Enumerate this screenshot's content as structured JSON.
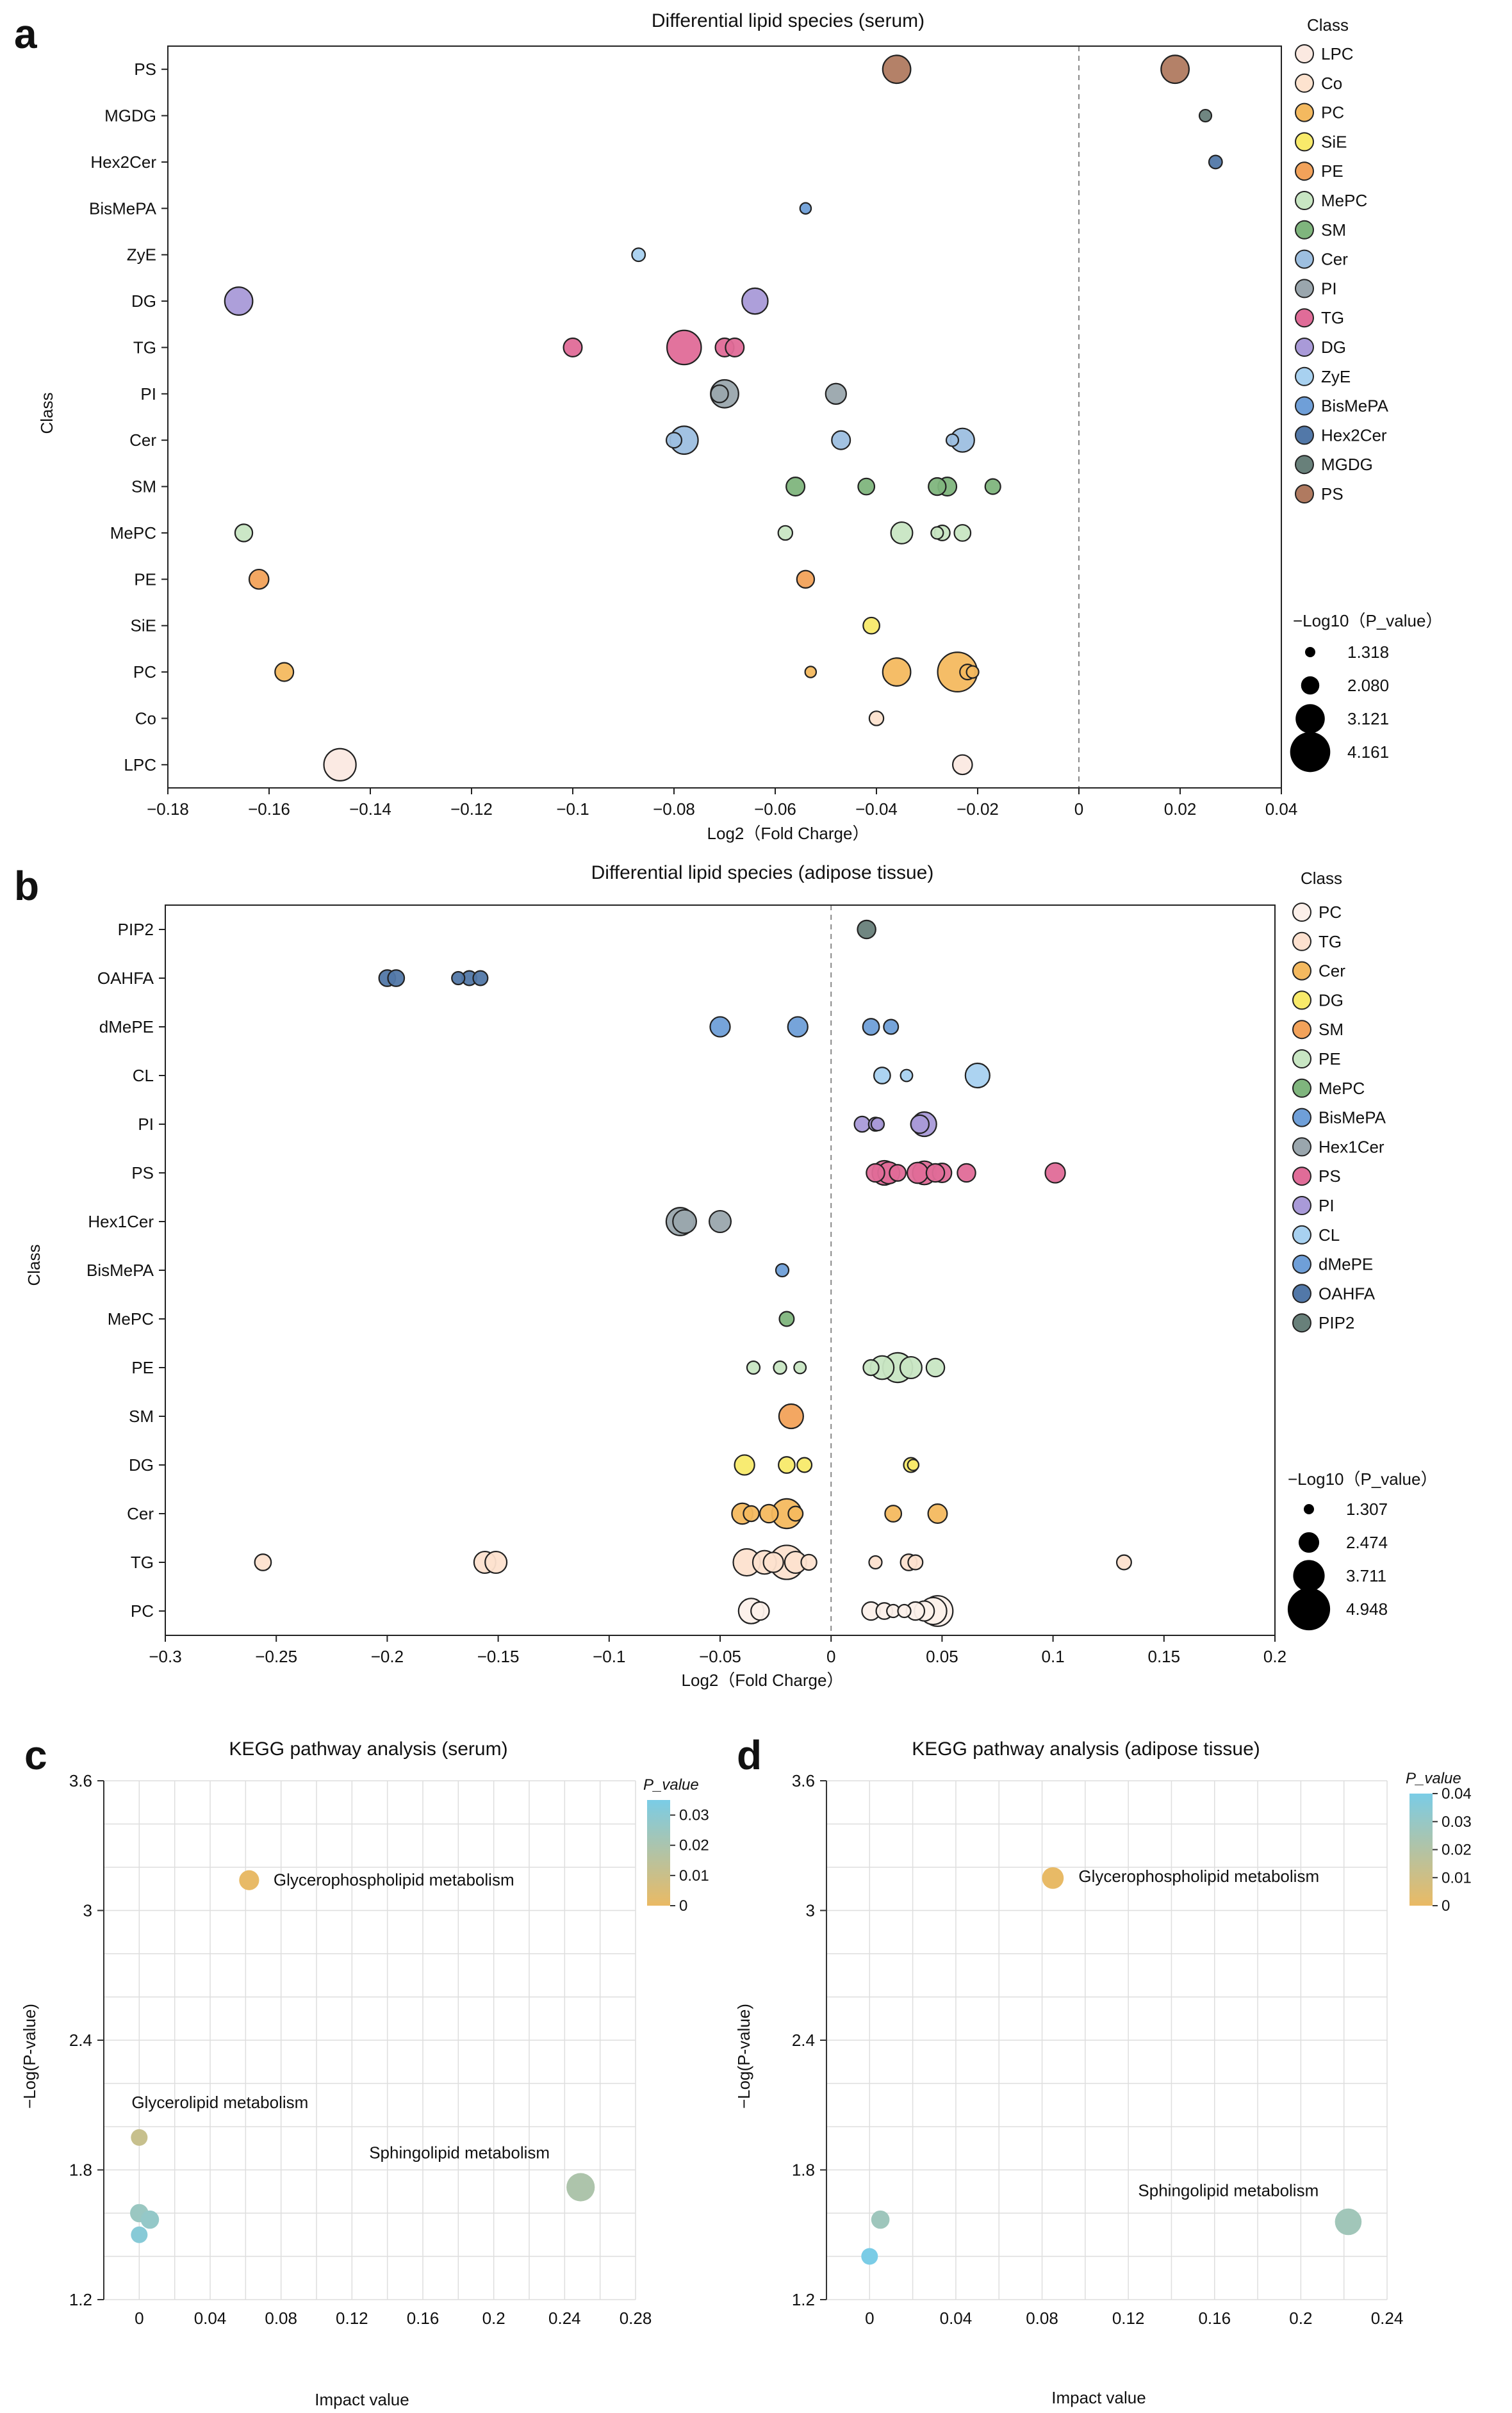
{
  "chart_data": [
    {
      "panel": "a",
      "type": "scatter",
      "title": "Differential lipid species  (serum)",
      "xlabel": "Log2（Fold Charge）",
      "ylabel": "Class",
      "xlim": [
        -0.18,
        0.04
      ],
      "xticks": [
        -0.18,
        -0.16,
        -0.14,
        -0.12,
        -0.1,
        -0.08,
        -0.06,
        -0.04,
        -0.02,
        0,
        0.02,
        0.04
      ],
      "xtick_labels": [
        "−0.18",
        "−0.16",
        "−0.14",
        "−0.12",
        "−0.1",
        "−0.08",
        "−0.06",
        "−0.04",
        "−0.02",
        "0",
        "0.02",
        "0.04"
      ],
      "categories": [
        "LPC",
        "Co",
        "PC",
        "SiE",
        "PE",
        "MePC",
        "SM",
        "Cer",
        "PI",
        "TG",
        "DG",
        "ZyE",
        "BisMePA",
        "Hex2Cer",
        "MGDG",
        "PS"
      ],
      "legend_title": "Class",
      "legend_entries": [
        "LPC",
        "Co",
        "PC",
        "SiE",
        "PE",
        "MePC",
        "SM",
        "Cer",
        "PI",
        "TG",
        "DG",
        "ZyE",
        "BisMePA",
        "Hex2Cer",
        "MGDG",
        "PS"
      ],
      "colors": [
        "#fbe9e1",
        "#fde3cf",
        "#f4b95f",
        "#f8ea6a",
        "#f2a25a",
        "#c8e6c3",
        "#7fb57d",
        "#9dbfe0",
        "#9aa6ad",
        "#e06c98",
        "#a99ad8",
        "#a8d1f0",
        "#6f9fd8",
        "#5278a8",
        "#68807a",
        "#b07a60"
      ],
      "size_legend_title": "−Log10（P_value）",
      "size_legend": [
        1.318,
        2.08,
        3.121,
        4.161
      ],
      "size_legend_labels": [
        "1.318",
        "2.080",
        "3.121",
        "4.161"
      ],
      "points": [
        {
          "cls": "PS",
          "x": -0.036,
          "s": 3.0
        },
        {
          "cls": "PS",
          "x": 0.019,
          "s": 3.0
        },
        {
          "cls": "MGDG",
          "x": 0.025,
          "s": 1.5
        },
        {
          "cls": "Hex2Cer",
          "x": 0.027,
          "s": 1.6
        },
        {
          "cls": "BisMePA",
          "x": -0.054,
          "s": 1.4
        },
        {
          "cls": "ZyE",
          "x": -0.087,
          "s": 1.6
        },
        {
          "cls": "DG",
          "x": -0.166,
          "s": 3.0
        },
        {
          "cls": "DG",
          "x": -0.064,
          "s": 2.8
        },
        {
          "cls": "TG",
          "x": -0.1,
          "s": 2.1
        },
        {
          "cls": "TG",
          "x": -0.078,
          "s": 3.6
        },
        {
          "cls": "TG",
          "x": -0.07,
          "s": 2.1
        },
        {
          "cls": "TG",
          "x": -0.068,
          "s": 2.1
        },
        {
          "cls": "PI",
          "x": -0.071,
          "s": 2.0
        },
        {
          "cls": "PI",
          "x": -0.07,
          "s": 3.0
        },
        {
          "cls": "PI",
          "x": -0.048,
          "s": 2.3
        },
        {
          "cls": "Cer",
          "x": -0.08,
          "s": 1.8
        },
        {
          "cls": "Cer",
          "x": -0.078,
          "s": 3.0
        },
        {
          "cls": "Cer",
          "x": -0.047,
          "s": 2.1
        },
        {
          "cls": "Cer",
          "x": -0.025,
          "s": 1.5
        },
        {
          "cls": "Cer",
          "x": -0.023,
          "s": 2.6
        },
        {
          "cls": "SM",
          "x": -0.056,
          "s": 2.1
        },
        {
          "cls": "SM",
          "x": -0.042,
          "s": 1.9
        },
        {
          "cls": "SM",
          "x": -0.028,
          "s": 2.0
        },
        {
          "cls": "SM",
          "x": -0.026,
          "s": 2.1
        },
        {
          "cls": "SM",
          "x": -0.017,
          "s": 1.8
        },
        {
          "cls": "MePC",
          "x": -0.165,
          "s": 2.0
        },
        {
          "cls": "MePC",
          "x": -0.058,
          "s": 1.7
        },
        {
          "cls": "MePC",
          "x": -0.035,
          "s": 2.4
        },
        {
          "cls": "MePC",
          "x": -0.028,
          "s": 1.5
        },
        {
          "cls": "MePC",
          "x": -0.027,
          "s": 1.8
        },
        {
          "cls": "MePC",
          "x": -0.023,
          "s": 1.9
        },
        {
          "cls": "PE",
          "x": -0.162,
          "s": 2.2
        },
        {
          "cls": "PE",
          "x": -0.054,
          "s": 2.0
        },
        {
          "cls": "SiE",
          "x": -0.041,
          "s": 1.9
        },
        {
          "cls": "PC",
          "x": -0.157,
          "s": 2.1
        },
        {
          "cls": "PC",
          "x": -0.053,
          "s": 1.4
        },
        {
          "cls": "PC",
          "x": -0.036,
          "s": 3.0
        },
        {
          "cls": "PC",
          "x": -0.024,
          "s": 4.1
        },
        {
          "cls": "PC",
          "x": -0.022,
          "s": 1.8
        },
        {
          "cls": "PC",
          "x": -0.021,
          "s": 1.5
        },
        {
          "cls": "Co",
          "x": -0.04,
          "s": 1.7
        },
        {
          "cls": "LPC",
          "x": -0.146,
          "s": 3.4
        },
        {
          "cls": "LPC",
          "x": -0.023,
          "s": 2.2
        }
      ]
    },
    {
      "panel": "b",
      "type": "scatter",
      "title": "Differential lipid species (adipose tissue)",
      "xlabel": "Log2（Fold Charge）",
      "ylabel": "Class",
      "xlim": [
        -0.3,
        0.2
      ],
      "xticks": [
        -0.3,
        -0.25,
        -0.2,
        -0.15,
        -0.1,
        -0.05,
        0,
        0.05,
        0.1,
        0.15,
        0.2
      ],
      "xtick_labels": [
        "−0.3",
        "−0.25",
        "−0.2",
        "−0.15",
        "−0.1",
        "−0.05",
        "0",
        "0.05",
        "0.1",
        "0.15",
        "0.2"
      ],
      "categories": [
        "PC",
        "TG",
        "Cer",
        "DG",
        "SM",
        "PE",
        "MePC",
        "BisMePA",
        "Hex1Cer",
        "PS",
        "PI",
        "CL",
        "dMePE",
        "OAHFA",
        "PIP2"
      ],
      "legend_title": "Class",
      "legend_entries": [
        "PC",
        "TG",
        "Cer",
        "DG",
        "SM",
        "PE",
        "MePC",
        "BisMePA",
        "Hex1Cer",
        "PS",
        "PI",
        "CL",
        "dMePE",
        "OAHFA",
        "PIP2"
      ],
      "colors": [
        "#fcf0ea",
        "#fde1cf",
        "#f4b95f",
        "#f8ea6a",
        "#f2a25a",
        "#c8e6c3",
        "#7fb57d",
        "#6f9fd8",
        "#9aa6ad",
        "#e06c98",
        "#a99ad8",
        "#a8d1f0",
        "#6f9fd8",
        "#5278a8",
        "#68807a"
      ],
      "size_legend_title": "−Log10（P_value）",
      "size_legend": [
        1.307,
        2.474,
        3.711,
        4.948
      ],
      "size_legend_labels": [
        "1.307",
        "2.474",
        "3.711",
        "4.948"
      ],
      "points": [
        {
          "cls": "PIP2",
          "x": 0.016,
          "s": 2.2
        },
        {
          "cls": "OAHFA",
          "x": -0.2,
          "s": 2.0
        },
        {
          "cls": "OAHFA",
          "x": -0.196,
          "s": 2.0
        },
        {
          "cls": "OAHFA",
          "x": -0.168,
          "s": 1.6
        },
        {
          "cls": "OAHFA",
          "x": -0.163,
          "s": 1.8
        },
        {
          "cls": "OAHFA",
          "x": -0.158,
          "s": 1.8
        },
        {
          "cls": "dMePE",
          "x": -0.05,
          "s": 2.4
        },
        {
          "cls": "dMePE",
          "x": -0.015,
          "s": 2.4
        },
        {
          "cls": "dMePE",
          "x": 0.018,
          "s": 2.0
        },
        {
          "cls": "dMePE",
          "x": 0.027,
          "s": 1.8
        },
        {
          "cls": "CL",
          "x": 0.023,
          "s": 2.0
        },
        {
          "cls": "CL",
          "x": 0.034,
          "s": 1.5
        },
        {
          "cls": "CL",
          "x": 0.066,
          "s": 2.9
        },
        {
          "cls": "PI",
          "x": 0.014,
          "s": 1.9
        },
        {
          "cls": "PI",
          "x": 0.02,
          "s": 1.7
        },
        {
          "cls": "PI",
          "x": 0.021,
          "s": 1.6
        },
        {
          "cls": "PI",
          "x": 0.04,
          "s": 2.2
        },
        {
          "cls": "PI",
          "x": 0.042,
          "s": 2.9
        },
        {
          "cls": "PS",
          "x": 0.02,
          "s": 2.2
        },
        {
          "cls": "PS",
          "x": 0.024,
          "s": 2.9
        },
        {
          "cls": "PS",
          "x": 0.026,
          "s": 2.6
        },
        {
          "cls": "PS",
          "x": 0.03,
          "s": 2.0
        },
        {
          "cls": "PS",
          "x": 0.039,
          "s": 2.5
        },
        {
          "cls": "PS",
          "x": 0.042,
          "s": 2.8
        },
        {
          "cls": "PS",
          "x": 0.047,
          "s": 2.2
        },
        {
          "cls": "PS",
          "x": 0.05,
          "s": 2.3
        },
        {
          "cls": "PS",
          "x": 0.061,
          "s": 2.2
        },
        {
          "cls": "PS",
          "x": 0.101,
          "s": 2.4
        },
        {
          "cls": "Hex1Cer",
          "x": -0.068,
          "s": 3.3
        },
        {
          "cls": "Hex1Cer",
          "x": -0.066,
          "s": 2.8
        },
        {
          "cls": "Hex1Cer",
          "x": -0.05,
          "s": 2.6
        },
        {
          "cls": "BisMePA",
          "x": -0.022,
          "s": 1.6
        },
        {
          "cls": "MePC",
          "x": -0.02,
          "s": 1.8
        },
        {
          "cls": "PE",
          "x": -0.035,
          "s": 1.6
        },
        {
          "cls": "PE",
          "x": -0.023,
          "s": 1.6
        },
        {
          "cls": "PE",
          "x": -0.014,
          "s": 1.5
        },
        {
          "cls": "PE",
          "x": 0.018,
          "s": 1.9
        },
        {
          "cls": "PE",
          "x": 0.023,
          "s": 2.8
        },
        {
          "cls": "PE",
          "x": 0.03,
          "s": 3.5
        },
        {
          "cls": "PE",
          "x": 0.036,
          "s": 2.6
        },
        {
          "cls": "PE",
          "x": 0.047,
          "s": 2.2
        },
        {
          "cls": "SM",
          "x": -0.018,
          "s": 2.9
        },
        {
          "cls": "DG",
          "x": -0.039,
          "s": 2.4
        },
        {
          "cls": "DG",
          "x": -0.02,
          "s": 2.0
        },
        {
          "cls": "DG",
          "x": -0.012,
          "s": 1.8
        },
        {
          "cls": "DG",
          "x": 0.036,
          "s": 1.8
        },
        {
          "cls": "DG",
          "x": 0.037,
          "s": 1.4
        },
        {
          "cls": "Cer",
          "x": -0.04,
          "s": 2.5
        },
        {
          "cls": "Cer",
          "x": -0.036,
          "s": 1.9
        },
        {
          "cls": "Cer",
          "x": -0.028,
          "s": 2.2
        },
        {
          "cls": "Cer",
          "x": -0.02,
          "s": 3.5
        },
        {
          "cls": "Cer",
          "x": -0.016,
          "s": 1.8
        },
        {
          "cls": "Cer",
          "x": 0.028,
          "s": 2.0
        },
        {
          "cls": "Cer",
          "x": 0.048,
          "s": 2.3
        },
        {
          "cls": "TG",
          "x": -0.256,
          "s": 2.0
        },
        {
          "cls": "TG",
          "x": -0.156,
          "s": 2.6
        },
        {
          "cls": "TG",
          "x": -0.151,
          "s": 2.6
        },
        {
          "cls": "TG",
          "x": -0.038,
          "s": 3.2
        },
        {
          "cls": "TG",
          "x": -0.03,
          "s": 2.8
        },
        {
          "cls": "TG",
          "x": -0.026,
          "s": 2.4
        },
        {
          "cls": "TG",
          "x": -0.02,
          "s": 4.0
        },
        {
          "cls": "TG",
          "x": -0.016,
          "s": 2.6
        },
        {
          "cls": "TG",
          "x": -0.01,
          "s": 1.9
        },
        {
          "cls": "TG",
          "x": 0.02,
          "s": 1.6
        },
        {
          "cls": "TG",
          "x": 0.035,
          "s": 2.0
        },
        {
          "cls": "TG",
          "x": 0.038,
          "s": 1.8
        },
        {
          "cls": "TG",
          "x": 0.132,
          "s": 1.8
        },
        {
          "cls": "PC",
          "x": -0.036,
          "s": 3.0
        },
        {
          "cls": "PC",
          "x": -0.032,
          "s": 2.2
        },
        {
          "cls": "PC",
          "x": 0.018,
          "s": 2.2
        },
        {
          "cls": "PC",
          "x": 0.024,
          "s": 2.0
        },
        {
          "cls": "PC",
          "x": 0.028,
          "s": 1.6
        },
        {
          "cls": "PC",
          "x": 0.033,
          "s": 1.6
        },
        {
          "cls": "PC",
          "x": 0.038,
          "s": 2.2
        },
        {
          "cls": "PC",
          "x": 0.042,
          "s": 2.4
        },
        {
          "cls": "PC",
          "x": 0.046,
          "s": 3.2
        },
        {
          "cls": "PC",
          "x": 0.048,
          "s": 3.6
        }
      ]
    },
    {
      "panel": "c",
      "type": "scatter",
      "title": "KEGG pathway analysis (serum)",
      "xlabel": "Impact value",
      "ylabel": "−Log(P-value)",
      "xlim": [
        -0.02,
        0.28
      ],
      "ylim": [
        1.2,
        3.6
      ],
      "xticks": [
        0,
        0.04,
        0.08,
        0.12,
        0.16,
        0.2,
        0.24,
        0.28
      ],
      "xtick_labels": [
        "0",
        "0.04",
        "0.08",
        "0.12",
        "0.16",
        "0.2",
        "0.24",
        "0.28"
      ],
      "yticks": [
        1.2,
        1.8,
        2.4,
        3,
        3.6
      ],
      "ytick_labels": [
        "1.2",
        "1.8",
        "2.4",
        "3",
        "3.6"
      ],
      "minor_grid_x": 0.02,
      "minor_grid_y": 0.2,
      "colorbar_title": "P_value",
      "colorbar_ticks": [
        0,
        0.01,
        0.02,
        0.03
      ],
      "colorbar_tick_labels": [
        "0",
        "0.01",
        "0.02",
        "0.03"
      ],
      "colorbar_range": [
        0,
        0.035
      ],
      "points": [
        {
          "x": 0.062,
          "y": 3.14,
          "p": 0.0007,
          "r": 12,
          "label": "Glycerophospholipid metabolism"
        },
        {
          "x": 0.0,
          "y": 1.95,
          "p": 0.011,
          "r": 10,
          "label": "Glycerolipid metabolism"
        },
        {
          "x": 0.249,
          "y": 1.72,
          "p": 0.019,
          "r": 17,
          "label": "Sphingolipid metabolism"
        },
        {
          "x": 0.0,
          "y": 1.6,
          "p": 0.025,
          "r": 11,
          "label": ""
        },
        {
          "x": 0.006,
          "y": 1.57,
          "p": 0.027,
          "r": 11,
          "label": ""
        },
        {
          "x": 0.0,
          "y": 1.5,
          "p": 0.031,
          "r": 10,
          "label": ""
        }
      ]
    },
    {
      "panel": "d",
      "type": "scatter",
      "title": "KEGG pathway analysis (adipose tissue)",
      "xlabel": "Impact value",
      "ylabel": "−Log(P-value)",
      "xlim": [
        -0.02,
        0.24
      ],
      "ylim": [
        1.2,
        3.6
      ],
      "xticks": [
        0,
        0.04,
        0.08,
        0.12,
        0.16,
        0.2,
        0.24
      ],
      "xtick_labels": [
        "0",
        "0.04",
        "0.08",
        "0.12",
        "0.16",
        "0.2",
        "0.24"
      ],
      "yticks": [
        1.2,
        1.8,
        2.4,
        3,
        3.6
      ],
      "ytick_labels": [
        "1.2",
        "1.8",
        "2.4",
        "3",
        "3.6"
      ],
      "minor_grid_x": 0.02,
      "minor_grid_y": 0.2,
      "colorbar_title": "P_value",
      "colorbar_ticks": [
        0,
        0.01,
        0.02,
        0.03,
        0.04
      ],
      "colorbar_tick_labels": [
        "0",
        "0.01",
        "0.02",
        "0.03",
        "0.04"
      ],
      "colorbar_range": [
        0,
        0.04
      ],
      "points": [
        {
          "x": 0.085,
          "y": 3.15,
          "p": 0.0007,
          "r": 13,
          "label": "Glycerophospholipid metabolism"
        },
        {
          "x": 0.222,
          "y": 1.56,
          "p": 0.026,
          "r": 16,
          "label": "Sphingolipid metabolism"
        },
        {
          "x": 0.005,
          "y": 1.57,
          "p": 0.027,
          "r": 11,
          "label": ""
        },
        {
          "x": 0.0,
          "y": 1.4,
          "p": 0.04,
          "r": 10,
          "label": ""
        }
      ]
    }
  ],
  "panel_letters": [
    "a",
    "b",
    "c",
    "d"
  ]
}
